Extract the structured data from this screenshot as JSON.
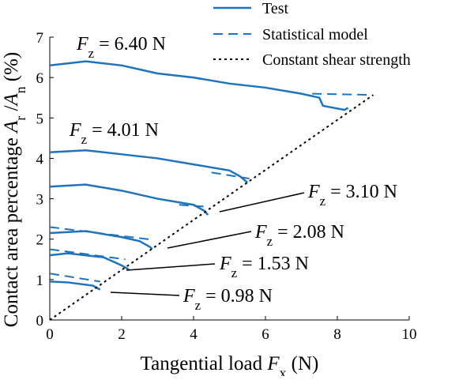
{
  "chart_data": {
    "type": "line",
    "xlabel": [
      "Tangential load ",
      "F",
      "x",
      " (N)"
    ],
    "ylabel": [
      "Contact area percentage ",
      "A",
      "r",
      " /",
      "A",
      "n",
      " (%)"
    ],
    "xlim": [
      0,
      10
    ],
    "xticks": [
      0,
      2,
      4,
      6,
      8,
      10
    ],
    "ylim": [
      0,
      7
    ],
    "yticks": [
      0,
      1,
      2,
      3,
      4,
      5,
      6,
      7
    ],
    "series": [
      {
        "name": "Test",
        "color": "#1f72bd",
        "dash": "solid",
        "curves": [
          {
            "x": [
              0,
              0.5,
              1,
              2,
              3,
              4,
              5,
              6,
              7,
              7.5,
              7.6,
              8.2,
              8.3
            ],
            "values": [
              6.3,
              6.35,
              6.4,
              6.3,
              6.1,
              6.0,
              5.85,
              5.75,
              5.6,
              5.5,
              5.3,
              5.2,
              5.25
            ]
          },
          {
            "x": [
              0,
              1,
              2,
              3,
              4,
              5,
              5.3,
              5.5
            ],
            "values": [
              4.15,
              4.2,
              4.1,
              4.0,
              3.85,
              3.7,
              3.55,
              3.4
            ]
          },
          {
            "x": [
              0,
              1,
              2,
              3,
              4,
              4.3,
              4.4
            ],
            "values": [
              3.3,
              3.35,
              3.2,
              3.0,
              2.85,
              2.7,
              2.6
            ]
          },
          {
            "x": [
              0,
              1,
              2,
              2.5,
              2.8,
              2.85
            ],
            "values": [
              2.15,
              2.2,
              2.05,
              1.95,
              1.8,
              1.75
            ]
          },
          {
            "x": [
              0,
              0.5,
              1.5,
              2,
              2.2
            ],
            "values": [
              1.6,
              1.65,
              1.55,
              1.35,
              1.25
            ]
          },
          {
            "x": [
              0,
              0.5,
              1.2,
              1.4
            ],
            "values": [
              0.95,
              0.93,
              0.85,
              0.75
            ]
          }
        ]
      },
      {
        "name": "Statistical model",
        "color": "#1f72bd",
        "dash": "dashed",
        "curves": [
          {
            "x": [
              7.3,
              8.95
            ],
            "values": [
              5.6,
              5.57
            ]
          },
          {
            "x": [
              4.5,
              5.55
            ],
            "values": [
              3.65,
              3.5
            ]
          },
          {
            "x": [
              3.6,
              4.4
            ],
            "values": [
              2.85,
              2.8
            ]
          },
          {
            "x": [
              0,
              2.9
            ],
            "values": [
              2.3,
              1.98
            ]
          },
          {
            "x": [
              0,
              2.1
            ],
            "values": [
              1.75,
              1.5
            ]
          },
          {
            "x": [
              0,
              1.4
            ],
            "values": [
              1.15,
              0.95
            ]
          }
        ]
      },
      {
        "name": "Constant shear strength",
        "color": "#000000",
        "dash": "dotted",
        "curves": [
          {
            "x": [
              0,
              9
            ],
            "values": [
              0,
              5.57
            ]
          }
        ]
      }
    ],
    "annotations": [
      [
        "F",
        "z",
        " = 6.40 N"
      ],
      [
        "F",
        "z",
        " = 4.01 N"
      ],
      [
        "F",
        "z",
        " = 3.10 N"
      ],
      [
        "F",
        "z",
        " = 2.08 N"
      ],
      [
        "F",
        "z",
        " = 1.53 N"
      ],
      [
        "F",
        "z",
        " = 0.98 N"
      ]
    ]
  }
}
